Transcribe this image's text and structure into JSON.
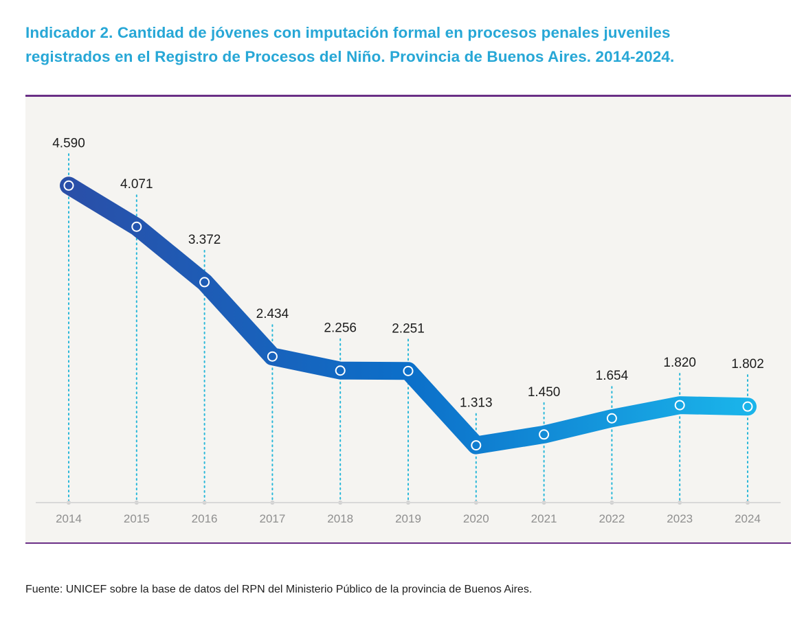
{
  "header": {
    "title_line1": "Indicador 2. Cantidad de jóvenes con imputación formal en procesos penales juveniles",
    "title_line2": "registrados en el Registro de Procesos del Niño. Provincia de Buenos Aires. 2014-2024."
  },
  "footer": {
    "source": "Fuente: UNICEF sobre la base de datos del RPN del Ministerio Público de la provincia de Buenos Aires."
  },
  "colors": {
    "title": "#27a7d6",
    "rule": "#6a2f86",
    "line_start": "#2a4fa8",
    "line_mid": "#0c6fc9",
    "line_end": "#1ab4ea",
    "guide": "#27b7d9",
    "axis_text": "#8f8f8f"
  },
  "chart_data": {
    "type": "line",
    "title": "Indicador 2. Cantidad de jóvenes con imputación formal en procesos penales juveniles registrados en el Registro de Procesos del Niño. Provincia de Buenos Aires. 2014-2024.",
    "xlabel": "",
    "ylabel": "",
    "categories": [
      "2014",
      "2015",
      "2016",
      "2017",
      "2018",
      "2019",
      "2020",
      "2021",
      "2022",
      "2023",
      "2024"
    ],
    "series": [
      {
        "name": "Jóvenes con imputación formal",
        "values": [
          4590,
          4071,
          3372,
          2434,
          2256,
          2251,
          1313,
          1450,
          1654,
          1820,
          1802
        ],
        "labels": [
          "4.590",
          "4.071",
          "3.372",
          "2.434",
          "2.256",
          "2.251",
          "1.313",
          "1.450",
          "1.654",
          "1.820",
          "1.802"
        ]
      }
    ],
    "ylim": [
      0,
      4800
    ],
    "grid": false,
    "legend": "none"
  }
}
